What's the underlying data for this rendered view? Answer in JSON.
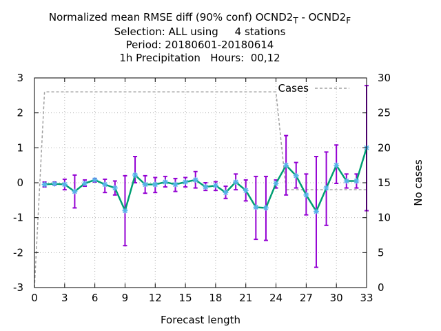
{
  "title": {
    "line1_main": "Normalized mean RMSE diff (90% conf) OCND2",
    "line1_sub1": "T",
    "line1_mid": " - OCND2",
    "line1_sub2": "F",
    "line2": "Selection: ALL using     4 stations",
    "line3": "Period: 20180601-20180614",
    "line4": "1h Precipitation   Hours:  00,12"
  },
  "chart_data": {
    "type": "line",
    "xlabel": "Forecast length",
    "ylabel": "",
    "y2label": "No cases",
    "xlim": [
      0,
      33
    ],
    "ylim": [
      -3,
      3
    ],
    "y2lim": [
      0,
      30
    ],
    "xticks": [
      0,
      3,
      6,
      9,
      12,
      15,
      18,
      21,
      24,
      27,
      30,
      33
    ],
    "yticks": [
      -3,
      -2,
      -1,
      0,
      1,
      2,
      3
    ],
    "y2ticks": [
      0,
      5,
      10,
      15,
      20,
      25,
      30
    ],
    "grid": true,
    "legend_position": "top-right",
    "series": [
      {
        "name": "",
        "axis": "y",
        "color": "#009e73",
        "marker_color": "#56b4e9",
        "errorbar_color": "#9400d3",
        "x": [
          1,
          2,
          3,
          4,
          5,
          6,
          7,
          8,
          9,
          10,
          11,
          12,
          13,
          14,
          15,
          16,
          17,
          18,
          19,
          20,
          21,
          22,
          23,
          24,
          25,
          26,
          27,
          28,
          29,
          30,
          31,
          32,
          33
        ],
        "values": [
          -0.05,
          -0.03,
          -0.05,
          -0.25,
          -0.02,
          0.08,
          -0.05,
          -0.15,
          -0.8,
          0.22,
          -0.05,
          -0.05,
          0.02,
          -0.05,
          0.02,
          0.08,
          -0.12,
          -0.08,
          -0.28,
          0.02,
          -0.22,
          -0.7,
          -0.72,
          -0.02,
          0.5,
          0.2,
          -0.35,
          -0.82,
          -0.15,
          0.5,
          0.05,
          0.05,
          1.0
        ],
        "err_low": [
          -0.12,
          -0.07,
          -0.2,
          -0.72,
          -0.1,
          0.02,
          -0.28,
          -0.35,
          -1.8,
          0.0,
          -0.3,
          -0.28,
          -0.12,
          -0.25,
          -0.12,
          -0.15,
          -0.22,
          -0.22,
          -0.45,
          -0.2,
          -0.52,
          -1.62,
          -1.65,
          -0.15,
          -0.35,
          -0.15,
          -0.92,
          -2.42,
          -1.22,
          -0.02,
          -0.15,
          -0.15,
          -0.8
        ],
        "err_high": [
          0.02,
          0.02,
          0.1,
          0.22,
          0.08,
          0.12,
          0.1,
          0.05,
          0.2,
          0.75,
          0.2,
          0.15,
          0.18,
          0.12,
          0.15,
          0.32,
          0.0,
          0.03,
          -0.1,
          0.25,
          0.08,
          0.18,
          0.18,
          0.08,
          1.35,
          0.58,
          0.25,
          0.75,
          0.88,
          1.08,
          0.25,
          0.25,
          2.78
        ]
      },
      {
        "name": "Cases",
        "axis": "y2",
        "color": "#a0a0a0",
        "x": [
          0,
          1,
          2,
          3,
          4,
          5,
          6,
          7,
          8,
          9,
          10,
          11,
          12,
          13,
          14,
          15,
          16,
          17,
          18,
          19,
          20,
          21,
          22,
          23,
          24,
          25,
          26,
          27,
          28,
          29,
          30,
          31,
          32,
          33
        ],
        "values": [
          0,
          28,
          28,
          28,
          28,
          28,
          28,
          28,
          28,
          28,
          28,
          28,
          28,
          28,
          28,
          28,
          28,
          28,
          28,
          28,
          28,
          28,
          28,
          28,
          28,
          14,
          14,
          14,
          14,
          14,
          14,
          14,
          14,
          14
        ]
      }
    ]
  }
}
